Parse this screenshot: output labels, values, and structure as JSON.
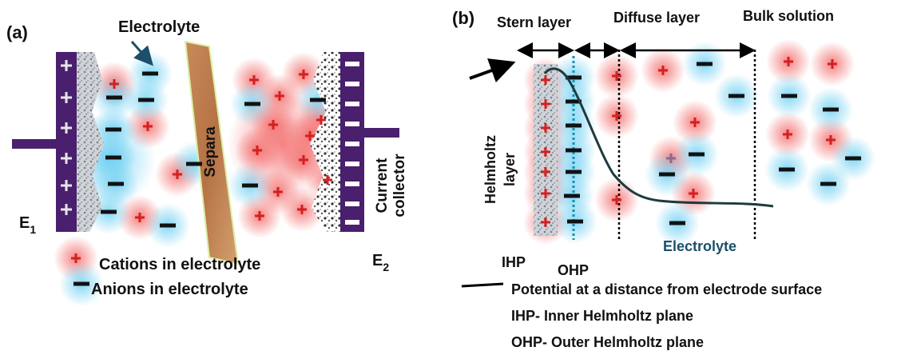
{
  "panel_a": {
    "label": "(a)",
    "electrolyte": "Electrolyte",
    "separator": "Separa",
    "electrode_1": {
      "name": "E",
      "subscript": "1"
    },
    "electrode_2": {
      "name": "E",
      "subscript": "2"
    },
    "current_collector": [
      "Current",
      "collector"
    ],
    "legend": [
      "Cations in electrolyte",
      "Anions in electrolyte"
    ]
  },
  "panel_b": {
    "label": "(b)",
    "regions": [
      "Stern layer",
      "Diffuse layer",
      "Bulk solution"
    ],
    "helmholtz": [
      "Helmholtz",
      "layer"
    ],
    "ihp": "IHP",
    "ohp": "OHP",
    "electrolyte": "Electrolyte",
    "legend": [
      "Potential at a distance from electrode surface",
      "IHP- Inner Helmholtz plane",
      "OHP- Outer Helmholtz plane"
    ]
  }
}
